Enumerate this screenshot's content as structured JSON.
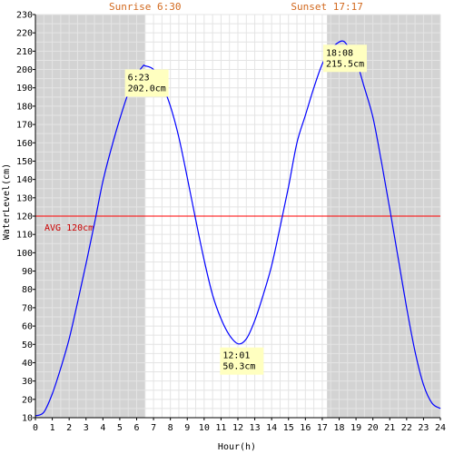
{
  "chart_data": {
    "type": "line",
    "xlabel": "Hour(h)",
    "ylabel": "WaterLevel(cm)",
    "xlim": [
      0,
      24
    ],
    "ylim": [
      10,
      230
    ],
    "x_ticks": [
      0,
      1,
      2,
      3,
      4,
      5,
      6,
      7,
      8,
      9,
      10,
      11,
      12,
      13,
      14,
      15,
      16,
      17,
      18,
      19,
      20,
      21,
      22,
      23,
      24
    ],
    "y_ticks": [
      10,
      20,
      30,
      40,
      50,
      60,
      70,
      80,
      90,
      100,
      110,
      120,
      130,
      140,
      150,
      160,
      170,
      180,
      190,
      200,
      210,
      220,
      230
    ],
    "grid": true,
    "sunrise": {
      "label": "Sunrise 6:30",
      "hour": 6.5
    },
    "sunset": {
      "label": "Sunset 17:17",
      "hour": 17.283
    },
    "night_shading_color": "#d3d3d3",
    "average": {
      "value": 120,
      "label": "AVG 120cm",
      "color": "#ff0000"
    },
    "series": [
      {
        "color": "#0000ff",
        "x": [
          0,
          0.5,
          1,
          1.5,
          2,
          2.5,
          3,
          3.5,
          4,
          4.5,
          5,
          5.5,
          6,
          6.383,
          6.5,
          7,
          7.5,
          8,
          8.5,
          9,
          9.5,
          10,
          10.5,
          11,
          11.5,
          12.017,
          12.5,
          13,
          13.5,
          14,
          14.5,
          15,
          15.5,
          16,
          16.5,
          17,
          17.5,
          18.133,
          18.5,
          19,
          19.5,
          20,
          20.5,
          21,
          21.5,
          22,
          22.5,
          23,
          23.5,
          24
        ],
        "y": [
          11,
          13,
          23,
          37,
          53,
          73,
          94,
          116,
          139,
          157,
          173,
          187,
          197,
          202,
          202,
          200,
          192,
          180,
          163,
          141,
          118,
          96,
          77,
          64,
          55,
          50.3,
          53,
          63,
          77,
          93,
          114,
          136,
          160,
          175,
          190,
          203,
          211,
          215.5,
          213,
          205,
          190,
          174,
          150,
          124,
          97,
          70,
          46,
          28,
          18,
          15
        ]
      }
    ],
    "annotations": [
      {
        "label_time": "6:23",
        "label_value": "202.0cm",
        "x": 6.383,
        "y": 202.0
      },
      {
        "label_time": "12:01",
        "label_value": "50.3cm",
        "x": 12.017,
        "y": 50.3
      },
      {
        "label_time": "18:08",
        "label_value": "215.5cm",
        "x": 18.133,
        "y": 215.5
      }
    ],
    "annotation_box_color": "#ffffc0"
  }
}
